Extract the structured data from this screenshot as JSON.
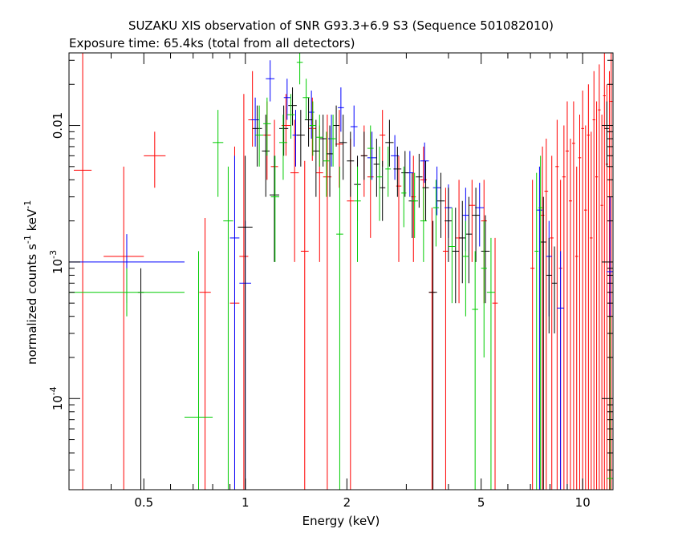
{
  "chart_data": {
    "type": "scatter",
    "title": "SUZAKU XIS observation of SNR G93.3+6.9 S3 (Sequence 501082010)",
    "subtitle": "Exposure time: 65.4ks (total from all detectors)",
    "xlabel": "Energy (keV)",
    "ylabel_parts": [
      "normalized counts s",
      "-1",
      " keV",
      "-1"
    ],
    "x_scale": "log",
    "y_scale": "log",
    "xlim": [
      0.3,
      12.3
    ],
    "ylim": [
      2.15e-05,
      0.034
    ],
    "x_ticks": [
      {
        "value": 0.5,
        "label": "0.5"
      },
      {
        "value": 1,
        "label": "1"
      },
      {
        "value": 2,
        "label": "2"
      },
      {
        "value": 5,
        "label": "5"
      },
      {
        "value": 10,
        "label": "10"
      }
    ],
    "y_ticks": [
      {
        "value": 0.01,
        "label": "0.01"
      },
      {
        "value": 0.001,
        "label_base": "10",
        "label_exp": "-3"
      },
      {
        "value": 0.0001,
        "label_base": "10",
        "label_exp": "-4"
      }
    ],
    "grid": false,
    "series": [
      {
        "color": "#ff0000",
        "points": [
          [
            0.31,
            0.35,
            0.0047,
            1e-06,
            0.034
          ],
          [
            0.38,
            0.5,
            0.0011,
            1e-06,
            0.005
          ],
          [
            0.5,
            0.58,
            0.006,
            0.0035,
            0.009
          ],
          [
            0.73,
            0.79,
            0.0006,
            1e-06,
            0.0021
          ],
          [
            0.9,
            0.96,
            0.0005,
            1e-06,
            0.007
          ],
          [
            0.96,
            1.02,
            0.0011,
            1e-06,
            0.017
          ],
          [
            1.02,
            1.08,
            0.011,
            0.007,
            0.025
          ],
          [
            1.13,
            1.19,
            0.0085,
            0.004,
            0.015
          ],
          [
            1.19,
            1.25,
            0.005,
            0.002,
            0.011
          ],
          [
            1.28,
            1.36,
            0.01,
            0.006,
            0.017
          ],
          [
            1.36,
            1.44,
            0.0045,
            0.001,
            0.011
          ],
          [
            1.46,
            1.54,
            0.0012,
            1e-06,
            0.0055
          ],
          [
            1.54,
            1.62,
            0.0095,
            0.0055,
            0.016
          ],
          [
            1.62,
            1.7,
            0.0045,
            0.001,
            0.01
          ],
          [
            1.7,
            1.8,
            0.0042,
            1e-06,
            0.012
          ],
          [
            1.85,
            1.95,
            0.0073,
            0.0035,
            0.013
          ],
          [
            2.0,
            2.1,
            0.0028,
            1e-06,
            0.008
          ],
          [
            2.2,
            2.3,
            0.006,
            0.003,
            0.01
          ],
          [
            2.3,
            2.4,
            0.0042,
            0.0015,
            0.009
          ],
          [
            2.5,
            2.6,
            0.0085,
            0.005,
            0.013
          ],
          [
            2.8,
            2.9,
            0.0036,
            0.001,
            0.006
          ],
          [
            3.1,
            3.2,
            0.003,
            0.001,
            0.006
          ],
          [
            3.3,
            3.45,
            0.004,
            0.002,
            0.007
          ],
          [
            3.5,
            3.65,
            0.0006,
            1e-06,
            0.0025
          ],
          [
            3.85,
            4.0,
            0.0012,
            1e-06,
            0.0035
          ],
          [
            4.2,
            4.4,
            0.0015,
            0.0005,
            0.004
          ],
          [
            4.6,
            4.8,
            0.0026,
            0.001,
            0.004
          ],
          [
            5.0,
            5.2,
            0.002,
            0.0005,
            0.004
          ],
          [
            5.4,
            5.6,
            0.0005,
            1e-06,
            0.0015
          ],
          [
            7.0,
            7.2,
            0.0009,
            1e-06,
            0.004
          ],
          [
            7.5,
            7.7,
            0.0022,
            1e-06,
            0.007
          ],
          [
            7.7,
            7.9,
            0.0033,
            1e-06,
            0.008
          ],
          [
            8.0,
            8.2,
            0.0015,
            1e-06,
            0.006
          ],
          [
            8.3,
            8.5,
            0.005,
            1e-06,
            0.011
          ],
          [
            8.5,
            8.7,
            0.0009,
            1e-06,
            0.004
          ],
          [
            8.7,
            8.9,
            0.0042,
            1e-06,
            0.01
          ],
          [
            8.9,
            9.1,
            0.0065,
            1e-06,
            0.015
          ],
          [
            9.1,
            9.3,
            0.0028,
            1e-06,
            0.008
          ],
          [
            9.3,
            9.5,
            0.0074,
            1e-06,
            0.015
          ],
          [
            9.5,
            9.7,
            0.0011,
            1e-06,
            0.005
          ],
          [
            9.7,
            9.9,
            0.0058,
            1e-06,
            0.012
          ],
          [
            9.9,
            10.1,
            0.0095,
            1e-06,
            0.018
          ],
          [
            10.1,
            10.3,
            0.0024,
            1e-06,
            0.01
          ],
          [
            10.3,
            10.5,
            0.0085,
            1e-06,
            0.02
          ],
          [
            10.5,
            10.7,
            0.0015,
            1e-06,
            0.009
          ],
          [
            10.7,
            10.9,
            0.011,
            1e-06,
            0.025
          ],
          [
            10.9,
            11.1,
            0.0042,
            1e-06,
            0.015
          ],
          [
            11.1,
            11.3,
            0.013,
            1e-06,
            0.028
          ],
          [
            11.3,
            11.5,
            0.0026,
            1e-06,
            0.012
          ],
          [
            11.5,
            11.7,
            0.0165,
            1e-06,
            0.034
          ],
          [
            11.7,
            11.9,
            0.0052,
            1e-06,
            0.02
          ],
          [
            11.9,
            12.1,
            0.009,
            1e-06,
            0.025
          ],
          [
            12.05,
            12.25,
            0.015,
            1e-06,
            0.034
          ]
        ]
      },
      {
        "color": "#0000ff",
        "points": [
          [
            0.3,
            0.66,
            0.001,
            0.0005,
            0.0016
          ],
          [
            0.9,
            0.96,
            0.0015,
            1e-06,
            0.006
          ],
          [
            0.96,
            1.04,
            0.0007,
            1e-06,
            0.002
          ],
          [
            1.04,
            1.1,
            0.011,
            0.007,
            0.016
          ],
          [
            1.15,
            1.22,
            0.022,
            0.015,
            0.03
          ],
          [
            1.3,
            1.36,
            0.016,
            0.011,
            0.022
          ],
          [
            1.38,
            1.44,
            0.0085,
            0.005,
            0.013
          ],
          [
            1.54,
            1.6,
            0.0125,
            0.008,
            0.018
          ],
          [
            1.76,
            1.84,
            0.008,
            0.005,
            0.012
          ],
          [
            1.88,
            1.96,
            0.0135,
            0.009,
            0.019
          ],
          [
            2.05,
            2.15,
            0.0098,
            0.007,
            0.014
          ],
          [
            2.3,
            2.45,
            0.0058,
            0.004,
            0.009
          ],
          [
            2.7,
            2.85,
            0.006,
            0.004,
            0.0085
          ],
          [
            3.0,
            3.15,
            0.0045,
            0.003,
            0.0065
          ],
          [
            3.3,
            3.5,
            0.0055,
            0.0038,
            0.0075
          ],
          [
            3.6,
            3.8,
            0.0035,
            0.0022,
            0.005
          ],
          [
            3.9,
            4.1,
            0.0025,
            0.0015,
            0.0037
          ],
          [
            4.4,
            4.6,
            0.0022,
            0.0012,
            0.0035
          ],
          [
            4.8,
            5.1,
            0.0025,
            0.0013,
            0.0038
          ],
          [
            7.3,
            7.6,
            0.0024,
            1e-06,
            0.005
          ],
          [
            7.8,
            8.1,
            0.0011,
            0.0004,
            0.002
          ],
          [
            8.4,
            8.8,
            0.00046,
            1e-06,
            0.0012
          ],
          [
            11.8,
            12.3,
            0.00085,
            1e-06,
            0.003
          ]
        ]
      },
      {
        "color": "#000000",
        "points": [
          [
            0.48,
            0.5,
            0.0006,
            1e-06,
            0.0009
          ],
          [
            0.95,
            1.05,
            0.0018,
            1e-06,
            0.006
          ],
          [
            1.05,
            1.12,
            0.0095,
            0.005,
            0.014
          ],
          [
            1.12,
            1.18,
            0.0065,
            0.003,
            0.012
          ],
          [
            1.18,
            1.26,
            0.0031,
            0.001,
            0.006
          ],
          [
            1.26,
            1.34,
            0.0095,
            0.006,
            0.014
          ],
          [
            1.34,
            1.42,
            0.014,
            0.01,
            0.019
          ],
          [
            1.42,
            1.5,
            0.0085,
            0.005,
            0.013
          ],
          [
            1.5,
            1.58,
            0.011,
            0.007,
            0.016
          ],
          [
            1.58,
            1.66,
            0.0065,
            0.003,
            0.011
          ],
          [
            1.66,
            1.74,
            0.008,
            0.005,
            0.012
          ],
          [
            1.74,
            1.82,
            0.0062,
            0.003,
            0.01
          ],
          [
            1.82,
            1.9,
            0.01,
            0.007,
            0.014
          ],
          [
            1.9,
            2.0,
            0.0075,
            0.004,
            0.012
          ],
          [
            2.0,
            2.1,
            0.0055,
            0.003,
            0.009
          ],
          [
            2.1,
            2.2,
            0.0037,
            0.002,
            0.006
          ],
          [
            2.2,
            2.3,
            0.006,
            0.004,
            0.009
          ],
          [
            2.4,
            2.5,
            0.0052,
            0.003,
            0.008
          ],
          [
            2.5,
            2.6,
            0.0035,
            0.002,
            0.0055
          ],
          [
            2.6,
            2.75,
            0.0075,
            0.005,
            0.011
          ],
          [
            2.75,
            2.9,
            0.0048,
            0.003,
            0.007
          ],
          [
            2.9,
            3.05,
            0.0045,
            0.003,
            0.0065
          ],
          [
            3.05,
            3.2,
            0.0028,
            0.0015,
            0.0045
          ],
          [
            3.2,
            3.35,
            0.0042,
            0.0025,
            0.0062
          ],
          [
            3.35,
            3.5,
            0.0035,
            0.002,
            0.0055
          ],
          [
            3.5,
            3.7,
            0.0006,
            1e-06,
            0.002
          ],
          [
            3.7,
            3.9,
            0.0028,
            0.0015,
            0.0045
          ],
          [
            3.9,
            4.1,
            0.002,
            0.001,
            0.0035
          ],
          [
            4.1,
            4.3,
            0.0012,
            0.0005,
            0.0025
          ],
          [
            4.3,
            4.5,
            0.0015,
            0.0007,
            0.0028
          ],
          [
            4.5,
            4.7,
            0.0016,
            0.0007,
            0.003
          ],
          [
            4.7,
            4.95,
            0.0022,
            0.001,
            0.0035
          ],
          [
            5.0,
            5.3,
            0.0012,
            0.0005,
            0.0022
          ],
          [
            7.5,
            7.8,
            0.0014,
            1e-06,
            0.003
          ],
          [
            7.8,
            8.1,
            0.0008,
            0.0003,
            0.0015
          ],
          [
            8.1,
            8.4,
            0.0007,
            0.0003,
            0.0013
          ],
          [
            11.6,
            12.0,
            0.0095,
            0.005,
            0.015
          ]
        ]
      },
      {
        "color": "#00cc00",
        "points": [
          [
            0.3,
            0.66,
            0.0006,
            0.0004,
            0.0009
          ],
          [
            0.66,
            0.8,
            7.3e-05,
            1e-06,
            0.0012
          ],
          [
            0.8,
            0.86,
            0.0075,
            0.003,
            0.013
          ],
          [
            0.86,
            0.92,
            0.002,
            1e-06,
            0.005
          ],
          [
            1.07,
            1.13,
            0.0085,
            0.005,
            0.014
          ],
          [
            1.13,
            1.19,
            0.0103,
            0.006,
            0.016
          ],
          [
            1.19,
            1.26,
            0.003,
            0.001,
            0.006
          ],
          [
            1.26,
            1.33,
            0.0075,
            0.004,
            0.012
          ],
          [
            1.33,
            1.4,
            0.012,
            0.008,
            0.017
          ],
          [
            1.42,
            1.48,
            0.029,
            0.02,
            0.034
          ],
          [
            1.48,
            1.55,
            0.016,
            0.011,
            0.022
          ],
          [
            1.55,
            1.62,
            0.01,
            0.006,
            0.015
          ],
          [
            1.62,
            1.7,
            0.0082,
            0.005,
            0.012
          ],
          [
            1.7,
            1.78,
            0.0055,
            0.003,
            0.009
          ],
          [
            1.78,
            1.86,
            0.008,
            0.005,
            0.012
          ],
          [
            1.86,
            1.95,
            0.0016,
            1e-06,
            0.005
          ],
          [
            2.1,
            2.2,
            0.0028,
            0.001,
            0.005
          ],
          [
            2.3,
            2.4,
            0.0068,
            0.004,
            0.01
          ],
          [
            2.45,
            2.55,
            0.0042,
            0.002,
            0.007
          ],
          [
            2.6,
            2.7,
            0.0048,
            0.003,
            0.007
          ],
          [
            2.9,
            3.0,
            0.0032,
            0.0018,
            0.005
          ],
          [
            3.1,
            3.25,
            0.0028,
            0.0015,
            0.0045
          ],
          [
            3.3,
            3.45,
            0.002,
            0.001,
            0.0035
          ],
          [
            3.6,
            3.75,
            0.0025,
            0.0013,
            0.004
          ],
          [
            4.0,
            4.2,
            0.0013,
            0.0005,
            0.0025
          ],
          [
            4.4,
            4.6,
            0.0011,
            0.0004,
            0.002
          ],
          [
            4.7,
            4.9,
            0.00045,
            1e-06,
            0.0012
          ],
          [
            5.0,
            5.2,
            0.0009,
            0.0002,
            0.002
          ],
          [
            5.2,
            5.5,
            0.0006,
            1e-06,
            0.0015
          ],
          [
            7.2,
            7.4,
            0.0012,
            1e-06,
            0.0045
          ],
          [
            7.4,
            7.6,
            0.0025,
            1e-06,
            0.006
          ],
          [
            11.8,
            12.3,
            2.6e-05,
            1e-06,
            0.0004
          ]
        ]
      }
    ]
  }
}
